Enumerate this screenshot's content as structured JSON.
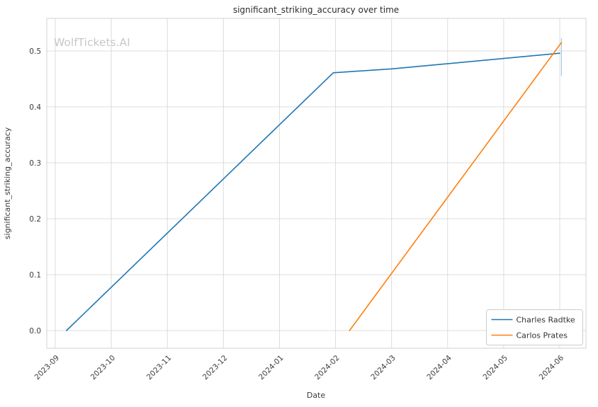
{
  "watermark": "WolfTickets.AI",
  "chart_data": {
    "type": "line",
    "title": "significant_striking_accuracy over time",
    "xlabel": "Date",
    "ylabel": "significant_striking_accuracy",
    "x_tick_labels": [
      "2023-09",
      "2023-10",
      "2023-11",
      "2023-12",
      "2024-01",
      "2024-02",
      "2024-03",
      "2024-04",
      "2024-05",
      "2024-06"
    ],
    "x_unit": "month index from 2023-09",
    "y_ticks": [
      0.0,
      0.1,
      0.2,
      0.3,
      0.4,
      0.5
    ],
    "ylim": [
      -0.03,
      0.56
    ],
    "grid": true,
    "grid_color": "#dcdcdc",
    "border_color": "#d0d0d0",
    "legend_position": "lower right",
    "series": [
      {
        "name": "Charles Radtke",
        "color": "#1f77b4",
        "points": [
          {
            "x": 0.2,
            "y": 0.0
          },
          {
            "x": 4.96,
            "y": 0.461
          },
          {
            "x": 6.0,
            "y": 0.468
          },
          {
            "x": 9.0,
            "y": 0.496
          }
        ]
      },
      {
        "name": "Carlos Prates",
        "color": "#ff7f0e",
        "points": [
          {
            "x": 5.25,
            "y": 0.0
          },
          {
            "x": 9.03,
            "y": 0.515
          }
        ]
      }
    ],
    "end_tick": {
      "x": 9.03,
      "y_from": 0.455,
      "y_to": 0.523,
      "color": "#a6c9e2"
    }
  }
}
